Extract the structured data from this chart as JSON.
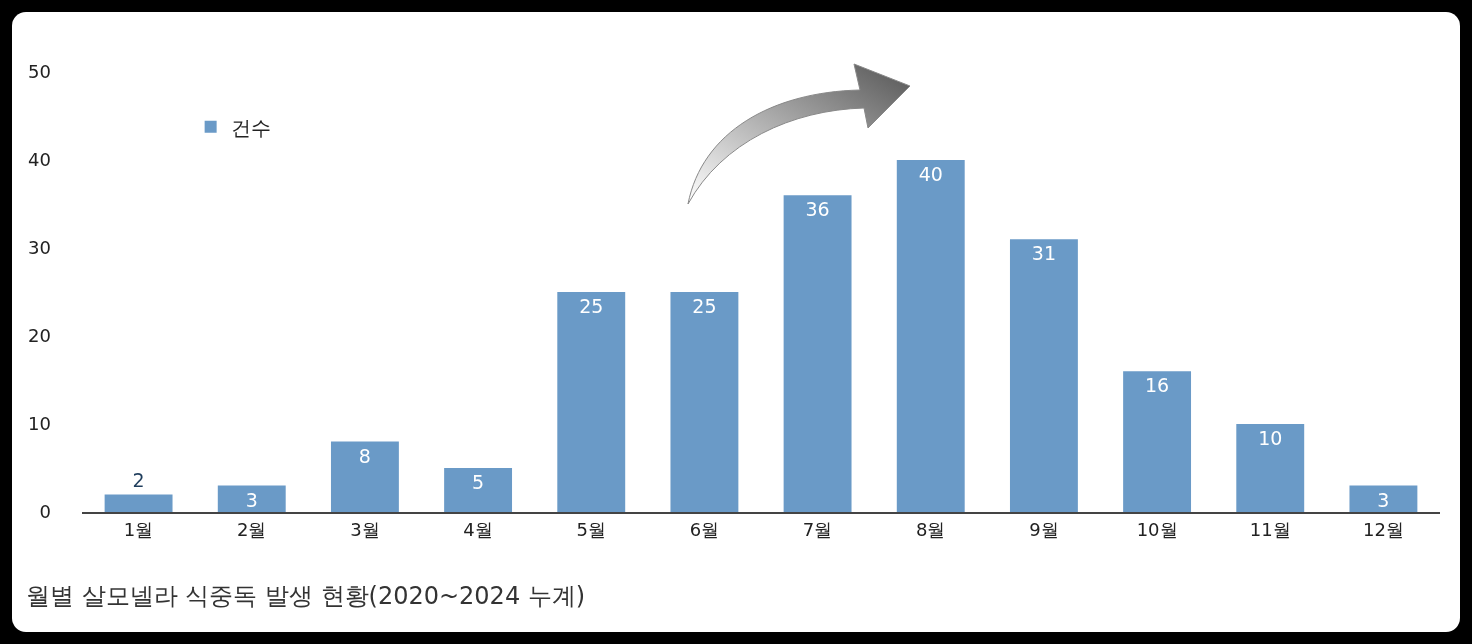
{
  "chart_data": {
    "type": "bar",
    "categories": [
      "1월",
      "2월",
      "3월",
      "4월",
      "5월",
      "6월",
      "7월",
      "8월",
      "9월",
      "10월",
      "11월",
      "12월"
    ],
    "series": [
      {
        "name": "건수",
        "color": "#6a9ac7",
        "values": [
          2,
          3,
          8,
          5,
          25,
          25,
          36,
          40,
          31,
          16,
          10,
          3
        ]
      }
    ],
    "ylim": [
      0,
      50
    ],
    "yticks": [
      0,
      10,
      20,
      30,
      40,
      50
    ],
    "grid": false,
    "legend": "top left",
    "data_labels": true,
    "annotations": [
      "월별 살모넬라 식중독 발생 현황(2020~2024 누계)"
    ]
  }
}
